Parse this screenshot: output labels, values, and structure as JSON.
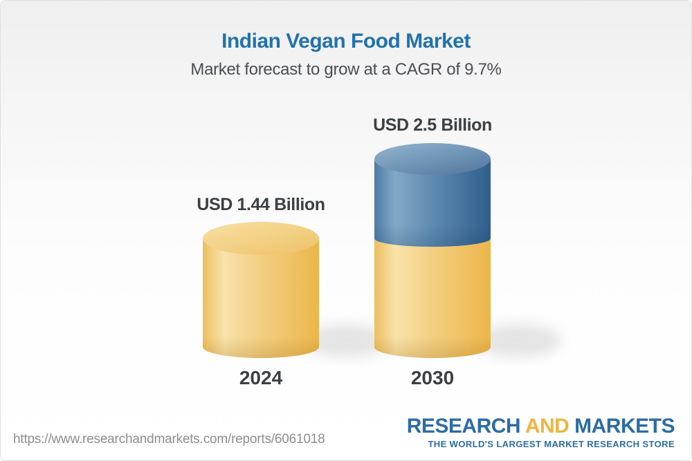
{
  "chart_data": {
    "type": "bar",
    "subtype": "3d-stacked-cylinder-columns",
    "title": "Indian Vegan Food Market",
    "subtitle": "Market forecast to grow at a CAGR of 9.7%",
    "cagr_percent": 9.7,
    "unit": "USD Billion",
    "categories": [
      "2024",
      "2030"
    ],
    "values": [
      1.44,
      2.5
    ],
    "value_labels": [
      "USD 1.44 Billion",
      "USD 2.5 Billion"
    ],
    "stacking": "2030 column shows current 1.44 (yellow base segment) plus forecast growth to 2.5 (blue top segment)",
    "ylim": [
      0,
      2.5
    ],
    "grid": false,
    "legend": false,
    "colors": {
      "title_blue": "#2172ac",
      "text_dark": "#3c4043",
      "text_gray": "#8e8e8e",
      "bar_yellow_side": [
        "#edbf5e",
        "#f8e3ab",
        "#f3cf82",
        "#ecb64a"
      ],
      "bar_yellow_top": [
        "#f8e0a4",
        "#efc36a"
      ],
      "bar_blue_side": [
        "#4e7ca5",
        "#82a8c7",
        "#5e8bb1",
        "#2f5e8c"
      ],
      "bar_blue_top": [
        "#93b6d1",
        "#54789f"
      ]
    }
  },
  "footer": {
    "url": "https://www.researchandmarkets.com/reports/6061018",
    "logo": {
      "part1": "RESEARCH",
      "part2": "AND",
      "part3": "MARKETS",
      "tagline": "THE WORLD'S LARGEST MARKET RESEARCH STORE",
      "blue": "#2c6ca4",
      "yellow": "#efb440"
    }
  }
}
